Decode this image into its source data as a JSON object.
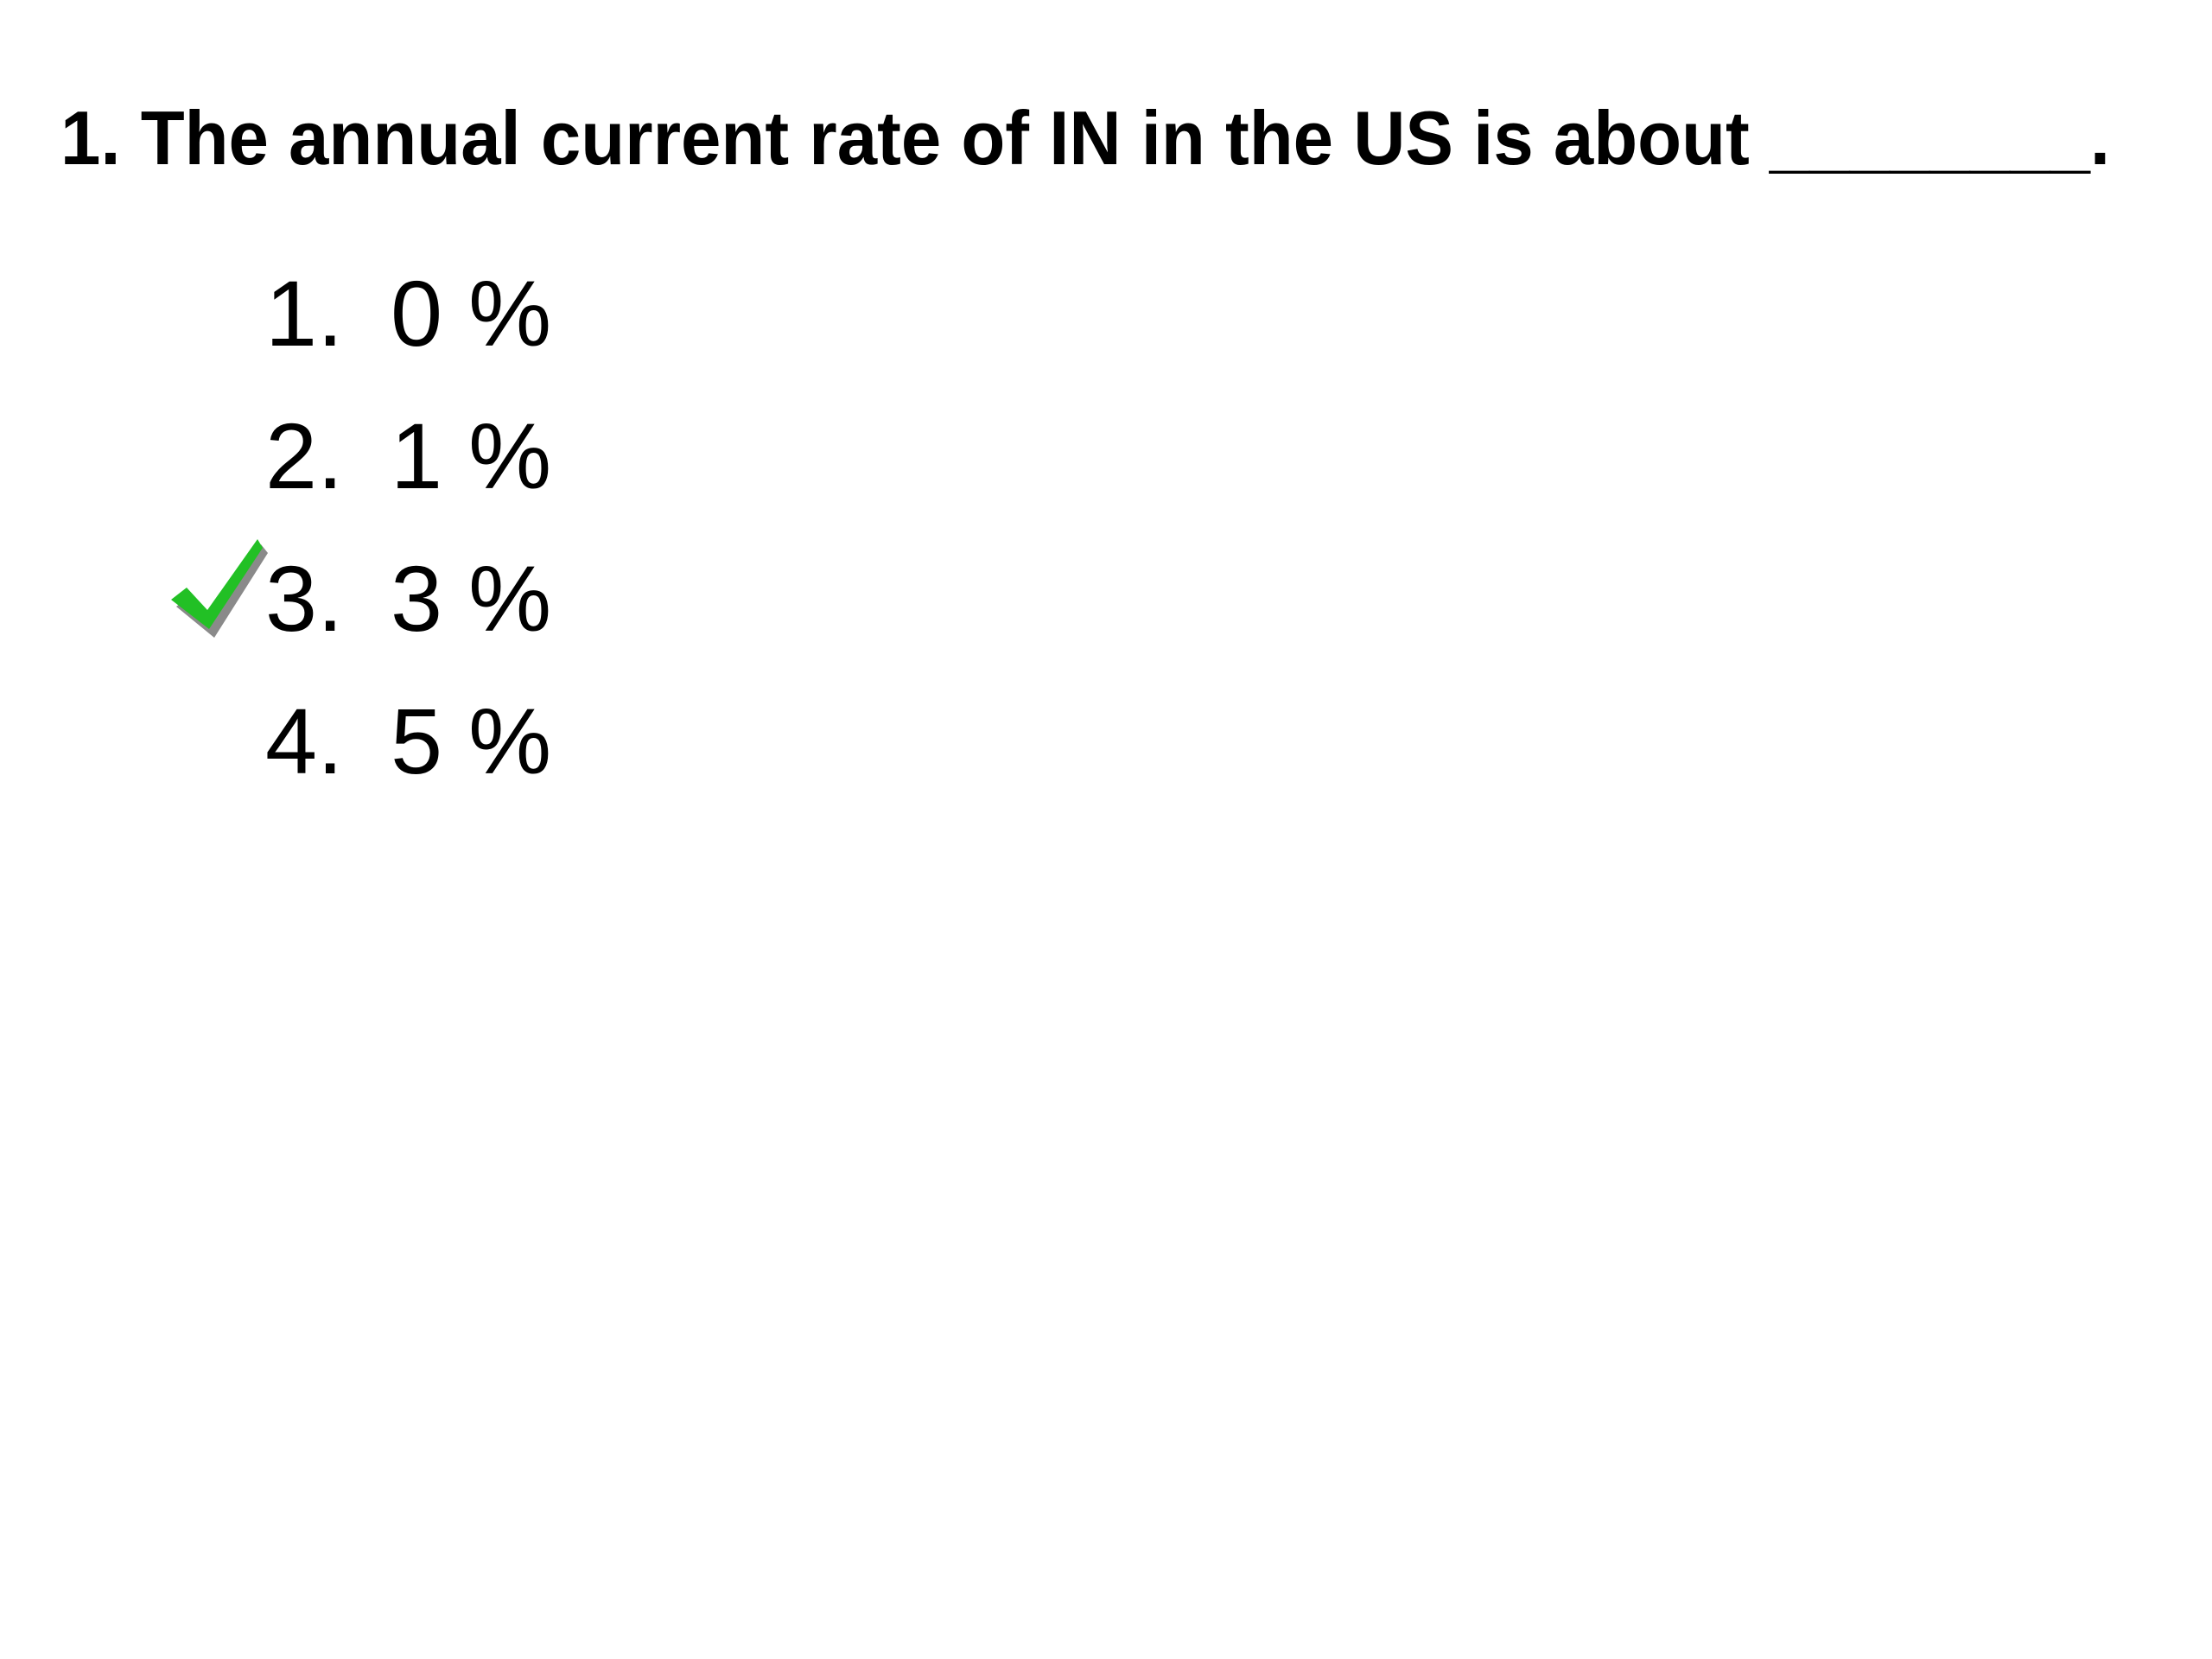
{
  "question": "1. The annual current rate of IN in the US is about ________.",
  "options": [
    {
      "marker": "1.",
      "text": "0 %"
    },
    {
      "marker": "2.",
      "text": "1 %"
    },
    {
      "marker": "3.",
      "text": "3 %",
      "correct": true
    },
    {
      "marker": "4.",
      "text": "5 %"
    }
  ]
}
